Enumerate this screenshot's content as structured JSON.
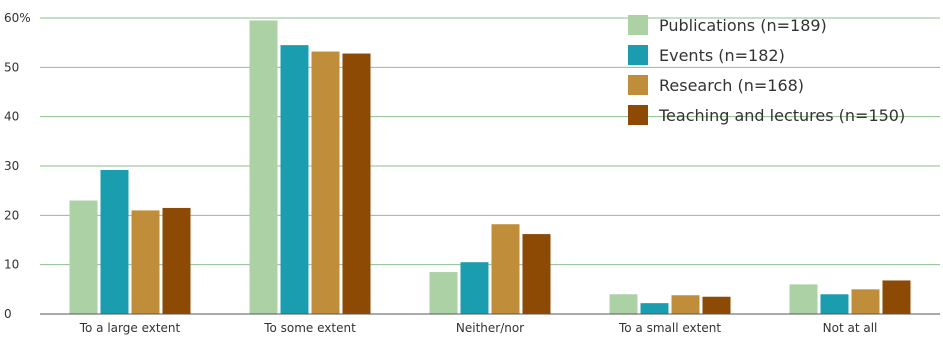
{
  "chart_data": {
    "type": "bar",
    "categories": [
      "To a large extent",
      "To some extent",
      "Neither/nor",
      "To a small extent",
      "Not at all"
    ],
    "series": [
      {
        "name": "Publications (n=189)",
        "color": "#abd1a5",
        "values": [
          23,
          59.5,
          8.5,
          4,
          6
        ]
      },
      {
        "name": "Events (n=182)",
        "color": "#1b9db0",
        "values": [
          29.2,
          54.5,
          10.5,
          2.2,
          4
        ]
      },
      {
        "name": "Research (n=168)",
        "color": "#c08e3a",
        "values": [
          21,
          53.2,
          18.2,
          3.8,
          5
        ]
      },
      {
        "name": "Teaching and lectures (n=150)",
        "color": "#8c4a05",
        "values": [
          21.5,
          52.8,
          16.2,
          3.5,
          6.8
        ]
      }
    ],
    "yticks": [
      "0",
      "10",
      "20",
      "30",
      "40",
      "50",
      "60%"
    ],
    "ylim": [
      0,
      60
    ],
    "grid": true,
    "gridline_color": "#8cc08c",
    "legend_position": "top-right",
    "title": "",
    "xlabel": "",
    "ylabel": ""
  }
}
